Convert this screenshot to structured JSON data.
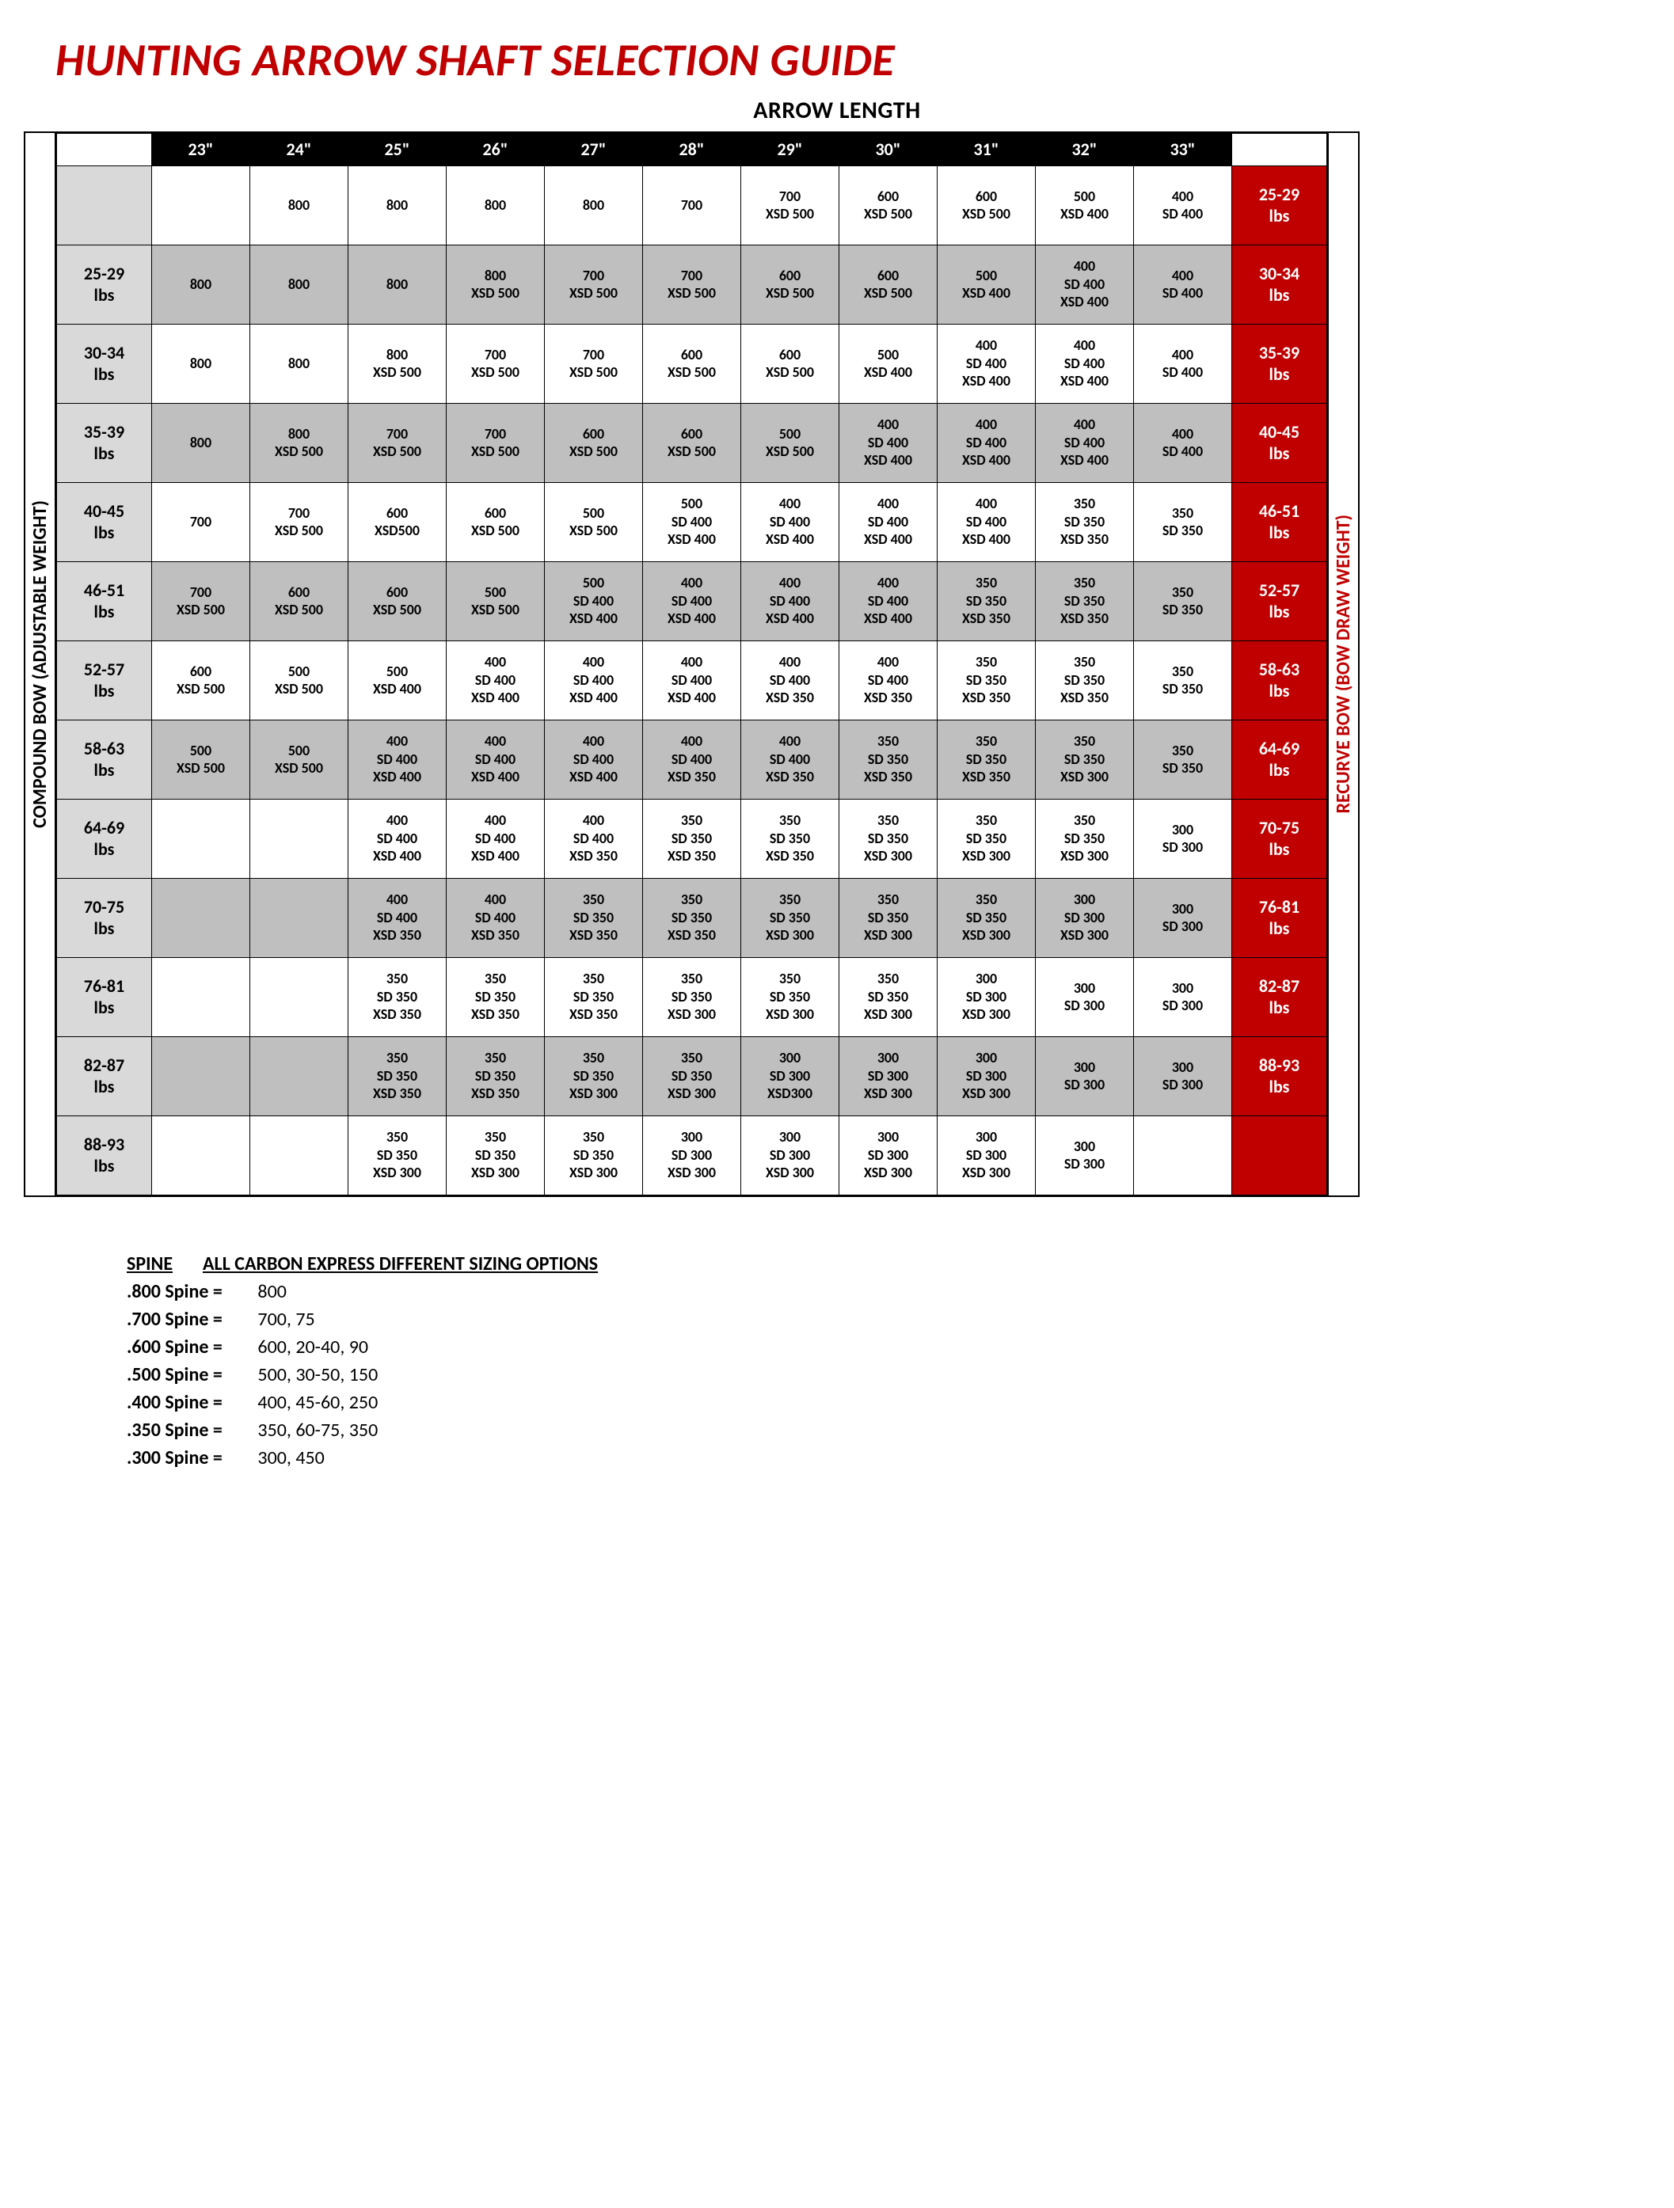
{
  "title": "HUNTING ARROW SHAFT SELECTION GUIDE",
  "subtitle": "ARROW LENGTH",
  "left_axis_label": "COMPOUND BOW (ADJUSTABLE WEIGHT)",
  "right_axis_label": "RECURVE BOW (BOW DRAW WEIGHT)",
  "colors": {
    "title_red": "#c00000",
    "header_black": "#000000",
    "lbs_grey": "#d9d9d9",
    "shade_grey": "#bfbfbf",
    "recurve_red": "#c00000",
    "white": "#ffffff"
  },
  "columns": [
    "23\"",
    "24\"",
    "25\"",
    "26\"",
    "27\"",
    "28\"",
    "29\"",
    "30\"",
    "31\"",
    "32\"",
    "33\""
  ],
  "rows": [
    {
      "lbs": "",
      "rcv": "25-29\nlbs",
      "shade": false,
      "cells": [
        "",
        "800",
        "800",
        "800",
        "800",
        "700",
        "700\nXSD 500",
        "600\nXSD 500",
        "600\nXSD 500",
        "500\nXSD 400",
        "400\nSD 400"
      ]
    },
    {
      "lbs": "25-29\nlbs",
      "rcv": "30-34\nlbs",
      "shade": true,
      "cells": [
        "800",
        "800",
        "800",
        "800\nXSD 500",
        "700\nXSD 500",
        "700\nXSD 500",
        "600\nXSD 500",
        "600\nXSD 500",
        "500\nXSD 400",
        "400\nSD 400\nXSD 400",
        "400\nSD 400"
      ]
    },
    {
      "lbs": "30-34\nlbs",
      "rcv": "35-39\nlbs",
      "shade": false,
      "cells": [
        "800",
        "800",
        "800\nXSD 500",
        "700\nXSD 500",
        "700\nXSD 500",
        "600\nXSD 500",
        "600\nXSD 500",
        "500\nXSD 400",
        "400\nSD 400\nXSD 400",
        "400\nSD 400\nXSD 400",
        "400\nSD 400"
      ]
    },
    {
      "lbs": "35-39\nlbs",
      "rcv": "40-45\nlbs",
      "shade": true,
      "cells": [
        "800",
        "800\nXSD 500",
        "700\nXSD 500",
        "700\nXSD 500",
        "600\nXSD 500",
        "600\nXSD 500",
        "500\nXSD 500",
        "400\nSD 400\nXSD 400",
        "400\nSD 400\nXSD 400",
        "400\nSD 400\nXSD 400",
        "400\nSD 400"
      ]
    },
    {
      "lbs": "40-45\nlbs",
      "rcv": "46-51\nlbs",
      "shade": false,
      "cells": [
        "700",
        "700\nXSD 500",
        "600\nXSD500",
        "600\nXSD 500",
        "500\nXSD 500",
        "500\nSD 400\nXSD 400",
        "400\nSD 400\nXSD 400",
        "400\nSD 400\nXSD 400",
        "400\nSD 400\nXSD 400",
        "350\nSD 350\nXSD 350",
        "350\nSD 350"
      ]
    },
    {
      "lbs": "46-51\nlbs",
      "rcv": "52-57\nlbs",
      "shade": true,
      "cells": [
        "700\nXSD 500",
        "600\nXSD 500",
        "600\nXSD 500",
        "500\nXSD 500",
        "500\nSD 400\nXSD 400",
        "400\nSD 400\nXSD 400",
        "400\nSD 400\nXSD 400",
        "400\nSD 400\nXSD 400",
        "350\nSD 350\nXSD 350",
        "350\nSD 350\nXSD 350",
        "350\nSD 350"
      ]
    },
    {
      "lbs": "52-57\nlbs",
      "rcv": "58-63\nlbs",
      "shade": false,
      "cells": [
        "600\nXSD 500",
        "500\nXSD 500",
        "500\nXSD 400",
        "400\nSD 400\nXSD 400",
        "400\nSD 400\nXSD 400",
        "400\nSD 400\nXSD 400",
        "400\nSD 400\nXSD 350",
        "400\nSD 400\nXSD 350",
        "350\nSD 350\nXSD 350",
        "350\nSD 350\nXSD 350",
        "350\nSD 350"
      ]
    },
    {
      "lbs": "58-63\nlbs",
      "rcv": "64-69\nlbs",
      "shade": true,
      "cells": [
        "500\nXSD 500",
        "500\nXSD 500",
        "400\nSD 400\nXSD 400",
        "400\nSD 400\nXSD 400",
        "400\nSD 400\nXSD 400",
        "400\nSD 400\nXSD 350",
        "400\nSD 400\nXSD 350",
        "350\nSD 350\nXSD 350",
        "350\nSD 350\nXSD 350",
        "350\nSD 350\nXSD 300",
        "350\nSD 350"
      ]
    },
    {
      "lbs": "64-69\nlbs",
      "rcv": "70-75\nlbs",
      "shade": false,
      "cells": [
        "",
        "",
        "400\nSD 400\nXSD 400",
        "400\nSD 400\nXSD 400",
        "400\nSD 400\nXSD 350",
        "350\nSD 350\nXSD 350",
        "350\nSD 350\nXSD 350",
        "350\nSD 350\nXSD 300",
        "350\nSD 350\nXSD 300",
        "350\nSD 350\nXSD 300",
        "300\nSD 300"
      ]
    },
    {
      "lbs": "70-75\nlbs",
      "rcv": "76-81\nlbs",
      "shade": true,
      "cells": [
        "",
        "",
        "400\nSD 400\nXSD 350",
        "400\nSD 400\nXSD 350",
        "350\nSD 350\nXSD 350",
        "350\nSD 350\nXSD 350",
        "350\nSD 350\nXSD 300",
        "350\nSD 350\nXSD 300",
        "350\nSD 350\nXSD 300",
        "300\nSD 300\nXSD 300",
        "300\nSD 300"
      ]
    },
    {
      "lbs": "76-81\nlbs",
      "rcv": "82-87\nlbs",
      "shade": false,
      "cells": [
        "",
        "",
        "350\nSD 350\nXSD 350",
        "350\nSD 350\nXSD 350",
        "350\nSD 350\nXSD 350",
        "350\nSD 350\nXSD 300",
        "350\nSD 350\nXSD 300",
        "350\nSD 350\nXSD 300",
        "300\nSD 300\nXSD 300",
        "300\nSD 300",
        "300\nSD 300"
      ]
    },
    {
      "lbs": "82-87\nlbs",
      "rcv": "88-93\nlbs",
      "shade": true,
      "cells": [
        "",
        "",
        "350\nSD 350\nXSD 350",
        "350\nSD 350\nXSD 350",
        "350\nSD 350\nXSD 300",
        "350\nSD 350\nXSD 300",
        "300\nSD 300\nXSD300",
        "300\nSD 300\nXSD 300",
        "300\nSD 300\nXSD 300",
        "300\nSD 300",
        "300\nSD 300"
      ]
    },
    {
      "lbs": "88-93\nlbs",
      "rcv": "",
      "shade": false,
      "cells": [
        "",
        "",
        "350\nSD 350\nXSD 300",
        "350\nSD 350\nXSD 300",
        "350\nSD 350\nXSD 300",
        "300\nSD 300\nXSD 300",
        "300\nSD 300\nXSD 300",
        "300\nSD 300\nXSD 300",
        "300\nSD 300\nXSD 300",
        "300\nSD 300",
        ""
      ]
    }
  ],
  "legend": {
    "h1": "SPINE",
    "h2": "ALL CARBON EXPRESS DIFFERENT SIZING OPTIONS",
    "items": [
      {
        "k": ".800 Spine =",
        "v": "800"
      },
      {
        "k": ".700 Spine =",
        "v": "700, 75"
      },
      {
        "k": ".600 Spine =",
        "v": "600, 20-40, 90"
      },
      {
        "k": ".500 Spine =",
        "v": "500, 30-50, 150"
      },
      {
        "k": ".400 Spine =",
        "v": "400, 45-60, 250"
      },
      {
        "k": ".350 Spine =",
        "v": "350, 60-75, 350"
      },
      {
        "k": ".300 Spine =",
        "v": "300, 450"
      }
    ]
  }
}
